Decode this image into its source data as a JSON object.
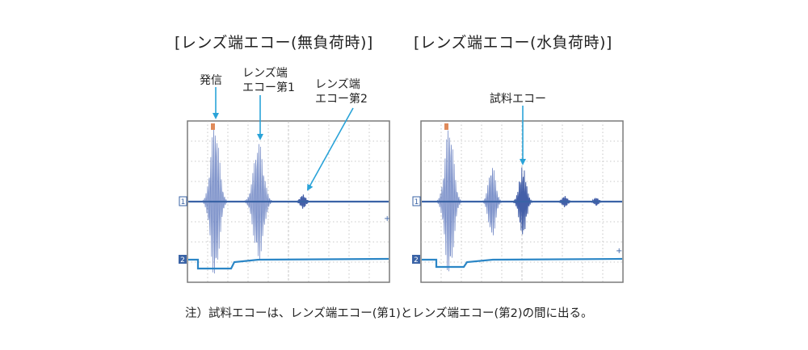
{
  "titles": {
    "no_load": "[レンズ端エコー(無負荷時)]",
    "water_load": "[レンズ端エコー(水負荷時)]"
  },
  "labels": {
    "transmit": "発信",
    "lens_echo_1_line1": "レンズ端",
    "lens_echo_1_line2": "エコー第1",
    "lens_echo_2_line1": "レンズ端",
    "lens_echo_2_line2": "エコー第2",
    "sample_echo": "試料エコー"
  },
  "marker_labels": {
    "channel_1": "1",
    "channel_2": "2"
  },
  "note": "注）試料エコーは、レンズ端エコー(第1)とレンズ端エコー(第2)の間に出る。",
  "colors": {
    "signal": "#6f86c4",
    "signal_dense": "#445fa8",
    "arrow": "#2aa3d8",
    "baseline": "#3a63a6",
    "trigger_line": "#2b86c6",
    "grid": "#b9b9b9",
    "frame": "#7a7a7a"
  }
}
